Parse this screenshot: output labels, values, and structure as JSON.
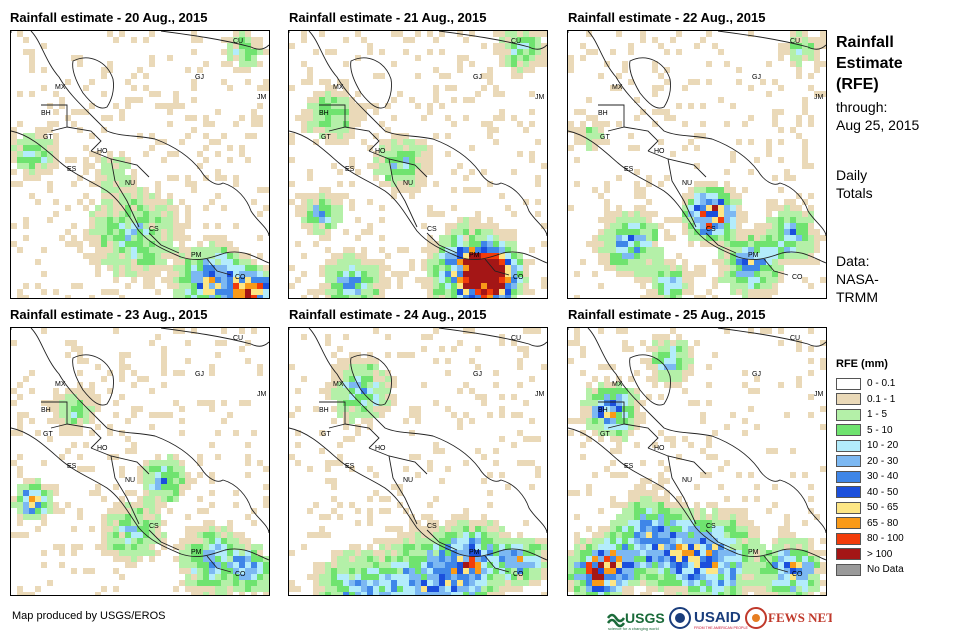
{
  "panels": [
    {
      "title": "Rainfall estimate - 20 Aug., 2015"
    },
    {
      "title": "Rainfall estimate - 21 Aug., 2015"
    },
    {
      "title": "Rainfall estimate - 22 Aug., 2015"
    },
    {
      "title": "Rainfall estimate - 23 Aug., 2015"
    },
    {
      "title": "Rainfall estimate - 24 Aug., 2015"
    },
    {
      "title": "Rainfall estimate - 25 Aug., 2015"
    }
  ],
  "country_labels": [
    "MX",
    "BH",
    "GT",
    "HO",
    "ES",
    "NU",
    "CS",
    "PM",
    "CO",
    "CU",
    "JM",
    "GJ"
  ],
  "side": {
    "title_line1": "Rainfall",
    "title_line2": "Estimate",
    "title_line3": "(RFE)",
    "through_label": "through:",
    "through_date": "Aug 25, 2015",
    "totals_line1": "Daily",
    "totals_line2": "Totals",
    "data_label": "Data:",
    "data_src1": "NASA-",
    "data_src2": "TRMM"
  },
  "legend": {
    "title": "RFE (mm)",
    "items": [
      {
        "label": "0 - 0.1",
        "color": "#ffffff"
      },
      {
        "label": "0.1 - 1",
        "color": "#ead9b8"
      },
      {
        "label": "1 - 5",
        "color": "#b4f0a8"
      },
      {
        "label": "5 - 10",
        "color": "#6fe36f"
      },
      {
        "label": "10 - 20",
        "color": "#b3ecfb"
      },
      {
        "label": "20 - 30",
        "color": "#7cb8f2"
      },
      {
        "label": "30 - 40",
        "color": "#3f86e8"
      },
      {
        "label": "40 - 50",
        "color": "#1b4fdc"
      },
      {
        "label": "50 - 65",
        "color": "#fde685"
      },
      {
        "label": "65 - 80",
        "color": "#f99a18"
      },
      {
        "label": "80 - 100",
        "color": "#f23c0a"
      },
      {
        "label": "> 100",
        "color": "#a41616"
      },
      {
        "label": "No Data",
        "color": "#9a9a9a"
      }
    ]
  },
  "credit": "Map produced by USGS/EROS",
  "logos": {
    "usgs": "USGS",
    "usgs_tagline": "science for a changing world",
    "usaid": "USAID",
    "usaid_tagline": "FROM THE AMERICAN PEOPLE",
    "fewsnet": "FEWS NET"
  }
}
